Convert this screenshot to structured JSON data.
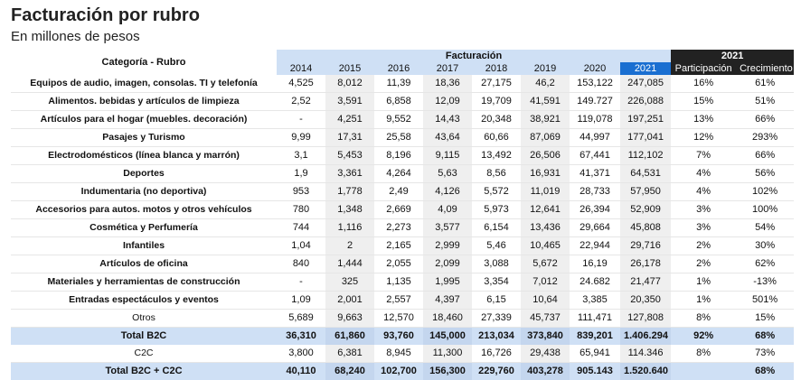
{
  "title": "Facturación por rubro",
  "subtitle": "En millones de pesos",
  "header": {
    "category_label": "Categoría - Rubro",
    "facturacion_label": "Facturación",
    "group_2021_label": "2021",
    "years": [
      "2014",
      "2015",
      "2016",
      "2017",
      "2018",
      "2019",
      "2020",
      "2021"
    ],
    "participacion_label": "Participación",
    "crecimiento_label": "Crecimiento"
  },
  "rows": [
    {
      "cat": "Equipos de audio, imagen, consolas. TI y telefonía",
      "vals": [
        "4,525",
        "8,012",
        "11,39",
        "18,36",
        "27,175",
        "46,2",
        "153,122",
        "247,085"
      ],
      "part": "16%",
      "crec": "61%"
    },
    {
      "cat": "Alimentos. bebidas y artículos de limpieza",
      "vals": [
        "2,52",
        "3,591",
        "6,858",
        "12,09",
        "19,709",
        "41,591",
        "149.727",
        "226,088"
      ],
      "part": "15%",
      "crec": "51%"
    },
    {
      "cat": "Artículos para el hogar (muebles. decoración)",
      "vals": [
        "-",
        "4,251",
        "9,552",
        "14,43",
        "20,348",
        "38,921",
        "119,078",
        "197,251"
      ],
      "part": "13%",
      "crec": "66%"
    },
    {
      "cat": "Pasajes y Turismo",
      "vals": [
        "9,99",
        "17,31",
        "25,58",
        "43,64",
        "60,66",
        "87,069",
        "44,997",
        "177,041"
      ],
      "part": "12%",
      "crec": "293%"
    },
    {
      "cat": "Electrodomésticos (línea blanca y marrón)",
      "vals": [
        "3,1",
        "5,453",
        "8,196",
        "9,115",
        "13,492",
        "26,506",
        "67,441",
        "112,102"
      ],
      "part": "7%",
      "crec": "66%"
    },
    {
      "cat": "Deportes",
      "vals": [
        "1,9",
        "3,361",
        "4,264",
        "5,63",
        "8,56",
        "16,931",
        "41,371",
        "64,531"
      ],
      "part": "4%",
      "crec": "56%"
    },
    {
      "cat": "Indumentaria  (no deportiva)",
      "vals": [
        "953",
        "1,778",
        "2,49",
        "4,126",
        "5,572",
        "11,019",
        "28,733",
        "57,950"
      ],
      "part": "4%",
      "crec": "102%"
    },
    {
      "cat": "Accesorios para autos. motos y otros vehículos",
      "vals": [
        "780",
        "1,348",
        "2,669",
        "4,09",
        "5,973",
        "12,641",
        "26,394",
        "52,909"
      ],
      "part": "3%",
      "crec": "100%"
    },
    {
      "cat": "Cosmética y Perfumería",
      "vals": [
        "744",
        "1,116",
        "2,273",
        "3,577",
        "6,154",
        "13,436",
        "29,664",
        "45,808"
      ],
      "part": "3%",
      "crec": "54%"
    },
    {
      "cat": "Infantiles",
      "vals": [
        "1,04",
        "2",
        "2,165",
        "2,999",
        "5,46",
        "10,465",
        "22,944",
        "29,716"
      ],
      "part": "2%",
      "crec": "30%"
    },
    {
      "cat": "Artículos de oficina",
      "vals": [
        "840",
        "1,444",
        "2,055",
        "2,099",
        "3,088",
        "5,672",
        "16,19",
        "26,178"
      ],
      "part": "2%",
      "crec": "62%"
    },
    {
      "cat": "Materiales y herramientas de construcción",
      "vals": [
        "-",
        "325",
        "1,135",
        "1,995",
        "3,354",
        "7,012",
        "24.682",
        "21,477"
      ],
      "part": "1%",
      "crec": "-13%"
    },
    {
      "cat": "Entradas espectáculos y eventos",
      "vals": [
        "1,09",
        "2,001",
        "2,557",
        "4,397",
        "6,15",
        "10,64",
        "3,385",
        "20,350"
      ],
      "part": "1%",
      "crec": "501%"
    },
    {
      "cat": "Otros",
      "vals": [
        "5,689",
        "9,663",
        "12,570",
        "18,460",
        "27,339",
        "45,737",
        "111,471",
        "127,808"
      ],
      "part": "8%",
      "crec": "15%",
      "plain": true
    }
  ],
  "total_b2c": {
    "cat": "Total B2C",
    "vals": [
      "36,310",
      "61,860",
      "93,760",
      "145,000",
      "213,034",
      "373,840",
      "839,201",
      "1.406.294"
    ],
    "part": "92%",
    "crec": "68%"
  },
  "c2c": {
    "cat": "C2C",
    "vals": [
      "3,800",
      "6,381",
      "8,945",
      "11,300",
      "16,726",
      "29,438",
      "65,941",
      "114.346"
    ],
    "part": "8%",
    "crec": "73%"
  },
  "total_all": {
    "cat": "Total B2C + C2C",
    "vals": [
      "40,110",
      "68,240",
      "102,700",
      "156,300",
      "229,760",
      "403,278",
      "905.143",
      "1.520.640"
    ],
    "part": "",
    "crec": "68%"
  }
}
